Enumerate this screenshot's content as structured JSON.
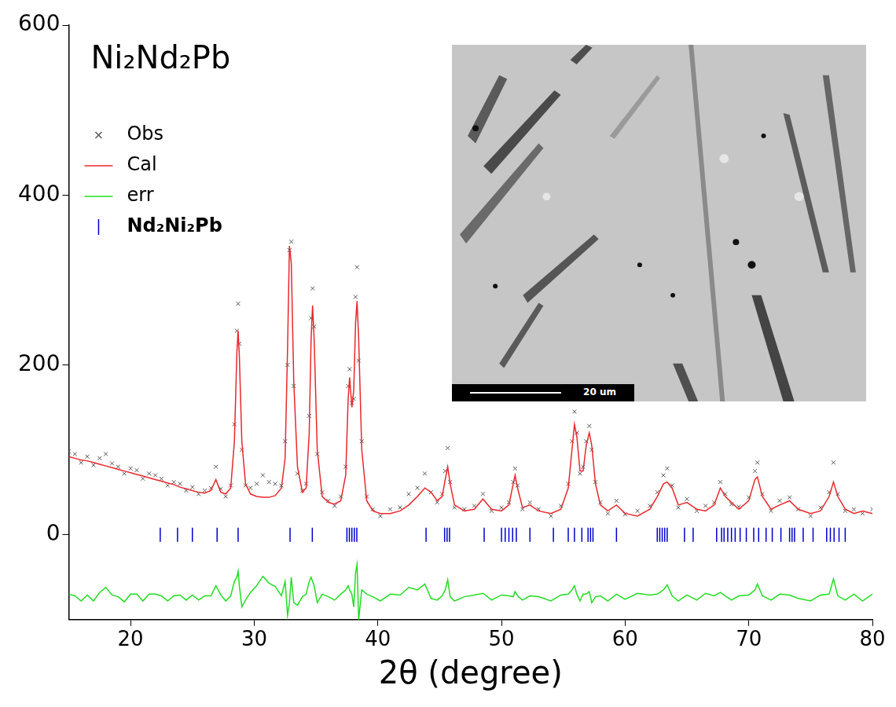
{
  "chart_data": {
    "type": "line",
    "title": "Ni₂Nd₂Pb",
    "x_label": "2θ (degree)",
    "xlim": [
      15,
      80
    ],
    "xticks": [
      20,
      30,
      40,
      50,
      60,
      70,
      80
    ],
    "ylim": [
      -100,
      600
    ],
    "yticks": [
      0,
      200,
      400,
      600
    ],
    "grid": false,
    "legend": "upper left",
    "x": [
      15,
      15.5,
      16,
      16.5,
      17,
      17.5,
      18,
      18.5,
      19,
      19.5,
      20,
      20.5,
      21,
      21.5,
      22,
      22.5,
      23,
      23.5,
      24,
      24.5,
      25,
      25.5,
      26,
      26.5,
      26.9,
      27.3,
      27.7,
      28.1,
      28.4,
      28.6,
      28.7,
      28.8,
      29.0,
      29.3,
      29.7,
      30.2,
      30.7,
      31.2,
      31.7,
      32.2,
      32.5,
      32.7,
      32.85,
      33.0,
      33.2,
      33.5,
      33.9,
      34.2,
      34.45,
      34.6,
      34.72,
      34.85,
      35.1,
      35.5,
      36.0,
      36.5,
      37.0,
      37.4,
      37.6,
      37.72,
      37.9,
      38.05,
      38.2,
      38.32,
      38.45,
      38.7,
      39.1,
      39.6,
      40.2,
      41,
      41.8,
      42.5,
      43.2,
      43.8,
      44.3,
      44.8,
      45.2,
      45.45,
      45.65,
      45.85,
      46.2,
      47,
      47.8,
      48.5,
      49.2,
      50,
      50.6,
      50.95,
      51.1,
      51.3,
      51.7,
      52.3,
      53,
      54,
      54.8,
      55.4,
      55.7,
      55.9,
      56.1,
      56.35,
      56.6,
      56.85,
      57.1,
      57.3,
      57.6,
      58.0,
      58.6,
      59.3,
      60,
      61,
      62,
      62.6,
      63.1,
      63.4,
      63.8,
      64.3,
      65,
      65.8,
      66.5,
      67.2,
      67.7,
      68.1,
      68.6,
      69.2,
      70,
      70.5,
      70.7,
      71.1,
      71.8,
      72.5,
      73.3,
      74,
      75,
      75.8,
      76.5,
      76.85,
      77.2,
      77.8,
      78.5,
      79.2,
      80
    ],
    "series": [
      {
        "name": "Obs",
        "type": "scatter",
        "marker": "x",
        "color": "#555555",
        "values": [
          98,
          95,
          85,
          92,
          82,
          90,
          95,
          84,
          80,
          72,
          78,
          76,
          66,
          72,
          70,
          66,
          58,
          62,
          60,
          52,
          56,
          48,
          52,
          55,
          80,
          54,
          45,
          58,
          130,
          240,
          272,
          225,
          100,
          58,
          55,
          60,
          70,
          62,
          60,
          58,
          110,
          200,
          335,
          345,
          175,
          72,
          52,
          60,
          140,
          255,
          290,
          245,
          95,
          50,
          40,
          34,
          45,
          80,
          175,
          195,
          155,
          160,
          280,
          315,
          205,
          110,
          45,
          30,
          22,
          30,
          32,
          48,
          55,
          72,
          50,
          38,
          48,
          75,
          102,
          62,
          32,
          30,
          34,
          48,
          28,
          32,
          38,
          62,
          78,
          58,
          30,
          38,
          30,
          22,
          34,
          60,
          110,
          145,
          120,
          72,
          80,
          110,
          128,
          100,
          62,
          38,
          25,
          40,
          24,
          28,
          34,
          50,
          70,
          78,
          58,
          32,
          42,
          28,
          34,
          38,
          62,
          48,
          36,
          33,
          44,
          75,
          85,
          48,
          28,
          40,
          44,
          30,
          22,
          32,
          50,
          85,
          48,
          28,
          30,
          25,
          30
        ]
      },
      {
        "name": "Cal",
        "type": "line",
        "color": "#e8282c",
        "values": [
          92,
          90,
          88,
          87,
          85,
          83,
          81,
          79,
          77,
          75,
          73,
          71,
          69,
          67,
          65,
          63,
          61,
          59,
          56,
          54,
          52,
          50,
          49,
          52,
          65,
          50,
          48,
          55,
          110,
          215,
          240,
          210,
          110,
          60,
          48,
          45,
          44,
          44,
          46,
          55,
          90,
          220,
          340,
          320,
          180,
          80,
          50,
          55,
          120,
          230,
          270,
          230,
          100,
          45,
          38,
          36,
          40,
          70,
          160,
          185,
          150,
          170,
          250,
          275,
          230,
          100,
          40,
          28,
          25,
          25,
          28,
          35,
          45,
          55,
          50,
          40,
          45,
          65,
          80,
          60,
          35,
          28,
          30,
          42,
          30,
          28,
          35,
          60,
          70,
          55,
          32,
          35,
          28,
          25,
          30,
          55,
          100,
          130,
          115,
          75,
          75,
          105,
          120,
          105,
          60,
          35,
          28,
          35,
          25,
          22,
          30,
          45,
          60,
          62,
          55,
          35,
          38,
          30,
          28,
          35,
          55,
          45,
          38,
          30,
          40,
          65,
          68,
          45,
          30,
          35,
          40,
          30,
          25,
          28,
          45,
          62,
          45,
          30,
          25,
          28,
          25
        ]
      },
      {
        "name": "err",
        "type": "line",
        "color": "#22dd22",
        "values": [
          -70,
          -72,
          -78,
          -71,
          -78,
          -68,
          -62,
          -71,
          -73,
          -79,
          -70,
          -70,
          -78,
          -70,
          -70,
          -72,
          -78,
          -72,
          -71,
          -77,
          -71,
          -77,
          -72,
          -72,
          -60,
          -71,
          -78,
          -72,
          -55,
          -50,
          -43,
          -60,
          -85,
          -77,
          -68,
          -60,
          -49,
          -57,
          -61,
          -72,
          -55,
          -95,
          -80,
          -50,
          -80,
          -83,
          -73,
          -70,
          -55,
          -50,
          -55,
          -60,
          -80,
          -70,
          -73,
          -77,
          -70,
          -65,
          -60,
          -65,
          -70,
          -85,
          -45,
          -35,
          -100,
          -65,
          -70,
          -73,
          -78,
          -70,
          -71,
          -62,
          -65,
          -58,
          -75,
          -77,
          -72,
          -65,
          -53,
          -73,
          -78,
          -73,
          -71,
          -69,
          -77,
          -71,
          -72,
          -73,
          -67,
          -72,
          -77,
          -72,
          -73,
          -78,
          -71,
          -70,
          -65,
          -60,
          -70,
          -78,
          -70,
          -70,
          -67,
          -80,
          -73,
          -72,
          -78,
          -70,
          -76,
          -69,
          -71,
          -70,
          -65,
          -59,
          -72,
          -78,
          -71,
          -77,
          -69,
          -72,
          -68,
          -72,
          -77,
          -72,
          -71,
          -65,
          -58,
          -72,
          -77,
          -70,
          -71,
          -75,
          -78,
          -71,
          -70,
          -52,
          -72,
          -77,
          -70,
          -78,
          -70
        ]
      }
    ],
    "reflections": {
      "name": "Nd₂Ni₂Pb",
      "marker": "line",
      "color": "#0000cc",
      "y": 0,
      "x": [
        22.4,
        23.8,
        25.0,
        27.0,
        28.7,
        32.9,
        34.7,
        37.5,
        37.7,
        37.9,
        38.1,
        38.3,
        43.9,
        45.4,
        45.6,
        45.8,
        48.6,
        50.0,
        50.3,
        50.6,
        50.9,
        51.2,
        52.3,
        54.2,
        55.4,
        55.9,
        56.5,
        57.0,
        57.2,
        57.4,
        59.3,
        62.6,
        62.8,
        63.0,
        63.2,
        63.4,
        64.8,
        65.5,
        67.4,
        67.8,
        68.0,
        68.3,
        68.6,
        68.9,
        69.3,
        69.8,
        70.4,
        70.8,
        71.4,
        71.9,
        72.6,
        73.3,
        73.5,
        73.7,
        74.4,
        75.2,
        76.3,
        76.6,
        76.9,
        77.3,
        77.8
      ]
    },
    "inset": {
      "type": "image",
      "scale_bar_label": "20 um"
    }
  }
}
